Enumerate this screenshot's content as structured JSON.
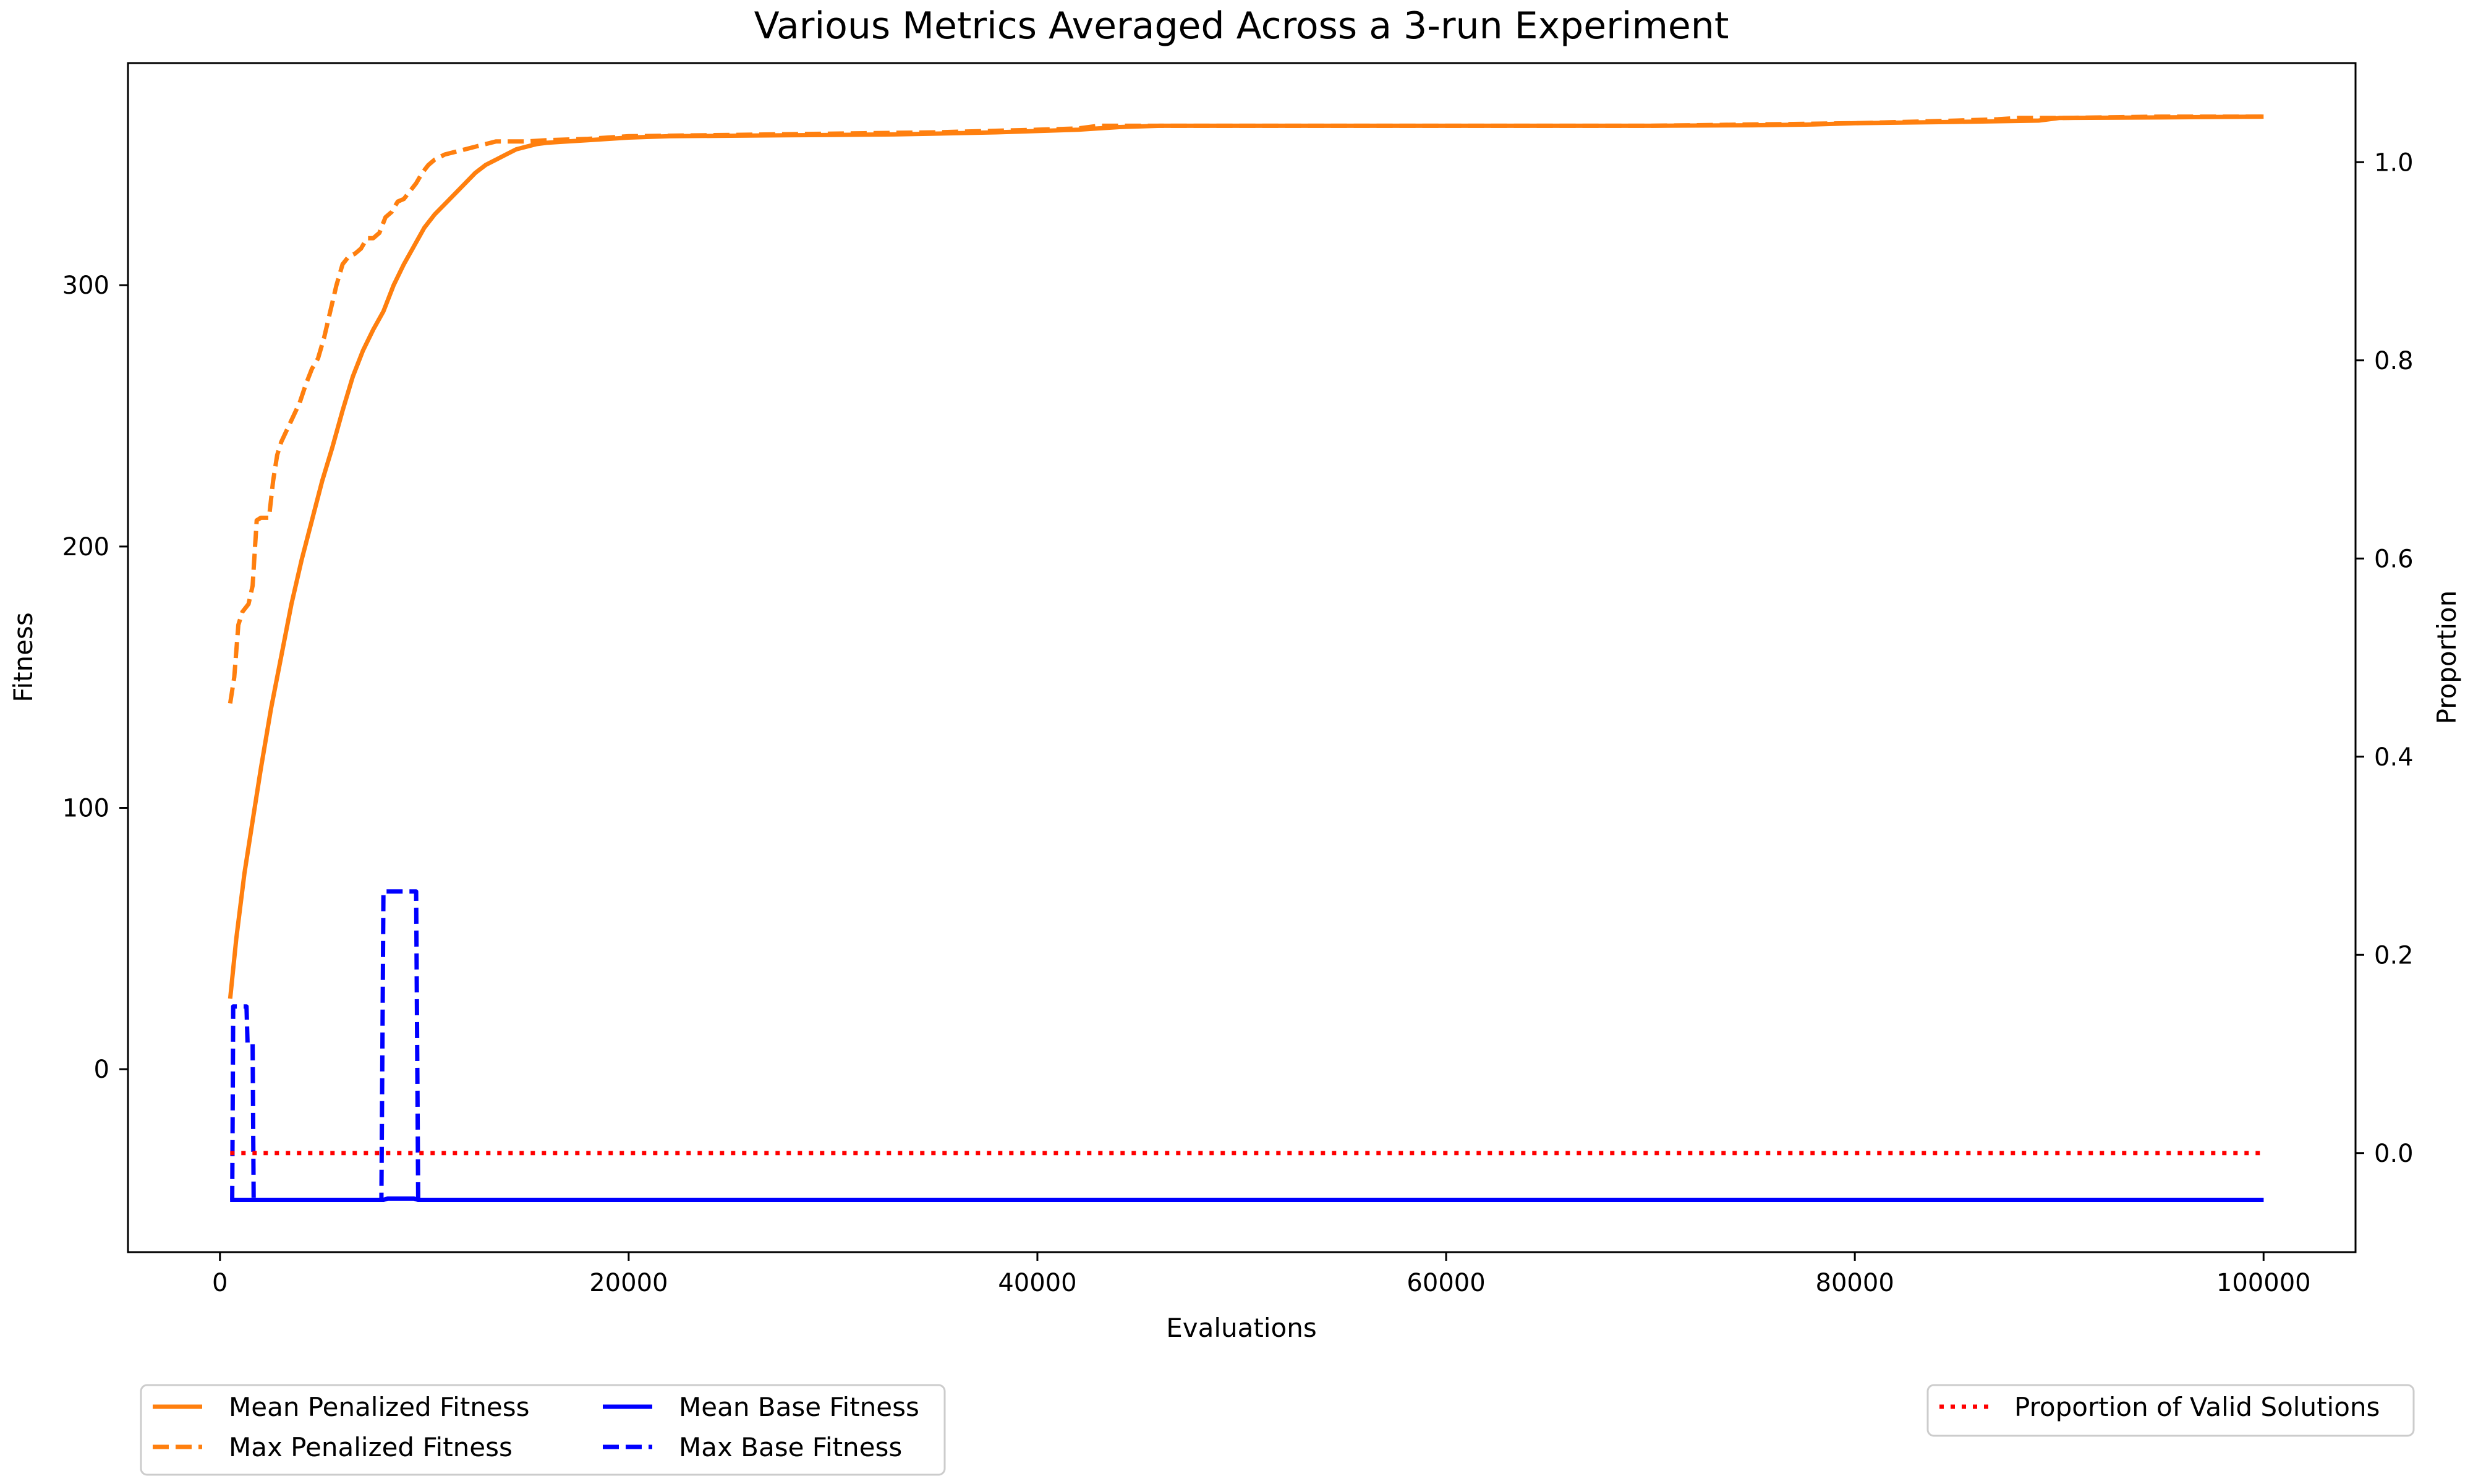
{
  "chart_data": {
    "type": "line",
    "title": "Various Metrics Averaged Across a 3-run Experiment",
    "xlabel": "Evaluations",
    "ylabel": "Fitness",
    "y2label": "Proportion",
    "xlim": [
      -4500,
      104500
    ],
    "ylim": [
      -70,
      385
    ],
    "y2lim": [
      -0.1,
      1.1
    ],
    "xticks": [
      0,
      20000,
      40000,
      60000,
      80000,
      100000
    ],
    "yticks": [
      0,
      100,
      200,
      300
    ],
    "y2ticks": [
      0.0,
      0.2,
      0.4,
      0.6,
      0.8,
      1.0
    ],
    "grid": false,
    "legend_left_placement": "bottom-left, below axes",
    "legend_right_placement": "bottom-right, below axes",
    "series": [
      {
        "name": "Mean Penalized Fitness",
        "axis": "left",
        "color": "#ff7f0e",
        "linestyle": "solid",
        "x": [
          500,
          800,
          1200,
          1600,
          2000,
          2500,
          3000,
          3500,
          4000,
          4500,
          5000,
          5500,
          6000,
          6500,
          7000,
          7500,
          8000,
          8500,
          9000,
          9500,
          10000,
          10500,
          11000,
          11500,
          12000,
          12500,
          13000,
          13500,
          14000,
          14500,
          15000,
          15500,
          16000,
          17000,
          18000,
          19000,
          20000,
          22000,
          25000,
          30000,
          33000,
          35000,
          38000,
          40000,
          42000,
          44000,
          46000,
          50000,
          55000,
          60000,
          65000,
          70000,
          75000,
          78000,
          80000,
          85000,
          89000,
          90000,
          95000,
          100000
        ],
        "y": [
          27,
          50,
          75,
          95,
          115,
          138,
          158,
          178,
          195,
          210,
          225,
          238,
          252,
          265,
          275,
          283,
          290,
          300,
          308,
          315,
          322,
          327,
          331,
          335,
          339,
          343,
          346,
          348,
          350,
          352,
          353,
          354,
          354.5,
          355,
          355.5,
          356,
          356.5,
          357,
          357.2,
          357.5,
          357.7,
          358,
          358.5,
          359,
          359.5,
          360.5,
          361,
          361,
          361,
          361,
          361,
          361,
          361.2,
          361.5,
          362,
          362.5,
          363,
          364,
          364.2,
          364.5
        ]
      },
      {
        "name": "Max Penalized Fitness",
        "axis": "left",
        "color": "#ff7f0e",
        "linestyle": "dashed",
        "x": [
          500,
          700,
          900,
          1100,
          1400,
          1600,
          1800,
          2000,
          2400,
          2600,
          2800,
          3000,
          3300,
          3600,
          3900,
          4200,
          4500,
          4800,
          5100,
          5400,
          5700,
          6000,
          6300,
          6600,
          6900,
          7200,
          7500,
          7800,
          8100,
          8400,
          8700,
          9000,
          9300,
          9600,
          9900,
          10200,
          10500,
          11000,
          11500,
          12000,
          12500,
          13000,
          13500,
          14000,
          15000,
          16000,
          18000,
          20000,
          25000,
          30000,
          35000,
          40000,
          42000,
          43000,
          45000,
          50000,
          60000,
          70000,
          75000,
          80000,
          85000,
          87000,
          88000,
          89000,
          90000,
          95000,
          100000
        ],
        "y": [
          140,
          150,
          170,
          175,
          178,
          185,
          210,
          211,
          211,
          225,
          235,
          240,
          245,
          250,
          255,
          262,
          268,
          272,
          280,
          290,
          300,
          308,
          311,
          312,
          314,
          318,
          318,
          320,
          326,
          328,
          332,
          333,
          336,
          339,
          343,
          346,
          348,
          350,
          351,
          352,
          353,
          354,
          355,
          355,
          355,
          355.5,
          356,
          357,
          357.5,
          358,
          358.5,
          359.5,
          360,
          361,
          361,
          361,
          361,
          361,
          361.5,
          362,
          363,
          363.5,
          364,
          364,
          364,
          364.5,
          364.5
        ]
      },
      {
        "name": "Mean Base Fitness",
        "axis": "left",
        "color": "#0000ff",
        "linestyle": "solid",
        "x": [
          500,
          8000,
          8200,
          9500,
          9700,
          100000
        ],
        "y": [
          -50,
          -50,
          -49.5,
          -49.5,
          -50,
          -50
        ]
      },
      {
        "name": "Max Base Fitness",
        "axis": "left",
        "color": "#0000ff",
        "linestyle": "dashed",
        "x": [
          500,
          600,
          650,
          1300,
          1350,
          1600,
          1650,
          7900,
          8000,
          9600,
          9700,
          100000
        ],
        "y": [
          -50,
          -50,
          24,
          24,
          10,
          10,
          -50,
          -50,
          68,
          68,
          -50,
          -50
        ]
      },
      {
        "name": "Proportion of Valid Solutions",
        "axis": "right",
        "color": "#ff0000",
        "linestyle": "dotted",
        "x": [
          500,
          100000
        ],
        "y": [
          0.0,
          0.0
        ]
      }
    ],
    "legend_left": [
      "Mean Penalized Fitness",
      "Max Penalized Fitness",
      "Mean Base Fitness",
      "Max Base Fitness"
    ],
    "legend_right": [
      "Proportion of Valid Solutions"
    ]
  }
}
